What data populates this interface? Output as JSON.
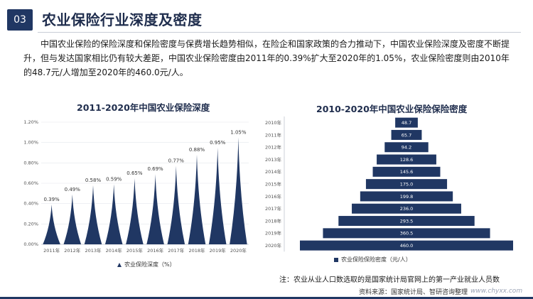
{
  "header": {
    "section_number": "03",
    "title": "农业保险行业深度及密度"
  },
  "intro_text": "中国农业保险的保险深度和保险密度与保费增长趋势相似，在险企和国家政策的合力推动下，中国农业保险深度及密度不断提升，但与发达国家相比仍有较大差距，中国农业保险密度由2011年的0.39%扩大至2020年的1.05%，农业保险密度则由2010年的48.7元/人增加至2020年的460.0元/人。",
  "colors": {
    "primary": "#203763",
    "grid": "#e3e6ec"
  },
  "footer": {
    "note": "注：农业从业人口数选取的是国家统计局官网上的第一产业就业人员数",
    "source": "资料来源：国家统计局、智研咨询整理",
    "site": "www.chyxx.com"
  },
  "chart_data": [
    {
      "type": "area",
      "title": "2011-2020年中国农业保险深度",
      "categories": [
        "2011年",
        "2012年",
        "2013年",
        "2014年",
        "2015年",
        "2016年",
        "2017年",
        "2018年",
        "2019年",
        "2020年"
      ],
      "values": [
        0.39,
        0.49,
        0.58,
        0.59,
        0.65,
        0.69,
        0.77,
        0.88,
        0.95,
        1.05
      ],
      "value_labels": [
        "0.39%",
        "0.49%",
        "0.58%",
        "0.59%",
        "0.65%",
        "0.69%",
        "0.77%",
        "0.88%",
        "0.95%",
        "1.05%"
      ],
      "y_ticks": [
        "0.00%",
        "0.20%",
        "0.40%",
        "0.60%",
        "0.80%",
        "1.00%",
        "1.20%"
      ],
      "ylim": [
        0,
        1.2
      ],
      "legend": "农业保险深度（%）",
      "legend_position": "bottom"
    },
    {
      "type": "bar",
      "orientation": "horizontal-centered",
      "title": "2010-2020年中国农业保险保险密度",
      "categories": [
        "2010年",
        "2011年",
        "2012年",
        "2013年",
        "2014年",
        "2015年",
        "2016年",
        "2017年",
        "2018年",
        "2019年",
        "2020年"
      ],
      "values": [
        48.7,
        65.7,
        94.2,
        128.6,
        145.6,
        175.0,
        199.8,
        236.0,
        293.5,
        360.5,
        460.0
      ],
      "value_labels": [
        "48.7",
        "65.7",
        "94.2",
        "128.6",
        "145.6",
        "175.0",
        "199.8",
        "236.0",
        "293.5",
        "360.5",
        "460.0"
      ],
      "legend": "农业保险保险密度（元/人）",
      "legend_position": "bottom"
    }
  ]
}
